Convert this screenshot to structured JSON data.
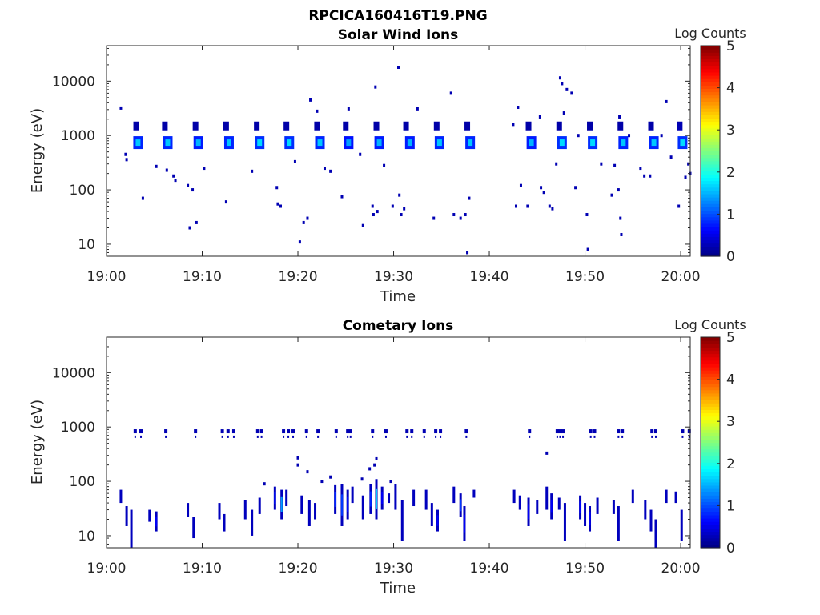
{
  "figure_title": "RPCICA160416T19.PNG",
  "chart_data": [
    {
      "type": "heatmap",
      "title": "Solar Wind Ions",
      "xlabel": "Time",
      "ylabel": "Energy (eV)",
      "x_tick_labels": [
        "19:00",
        "19:10",
        "19:20",
        "19:30",
        "19:40",
        "19:50",
        "20:00"
      ],
      "y_tick_labels": [
        "10",
        "100",
        "1000",
        "10000"
      ],
      "y_tick_values": [
        10,
        100,
        1000,
        10000
      ],
      "y_scale": "log",
      "xlim": [
        "19:00",
        "20:01"
      ],
      "ylim": [
        6,
        45000
      ],
      "colorbar": {
        "label": "Log Counts",
        "min": 0,
        "max": 5,
        "tick_labels": [
          "0",
          "1",
          "2",
          "3",
          "4",
          "5"
        ],
        "colormap": "jet"
      },
      "blobs": [
        {
          "t": 3.3,
          "e": 740,
          "v": 1.6
        },
        {
          "t": 3.1,
          "e": 1500,
          "v": 0.3
        },
        {
          "t": 6.4,
          "e": 740,
          "v": 1.6
        },
        {
          "t": 6.1,
          "e": 1500,
          "v": 0.3
        },
        {
          "t": 9.6,
          "e": 740,
          "v": 1.5
        },
        {
          "t": 9.3,
          "e": 1500,
          "v": 0.3
        },
        {
          "t": 12.8,
          "e": 740,
          "v": 1.6
        },
        {
          "t": 12.5,
          "e": 1500,
          "v": 0.3
        },
        {
          "t": 16.0,
          "e": 740,
          "v": 1.7
        },
        {
          "t": 15.7,
          "e": 1500,
          "v": 0.3
        },
        {
          "t": 19.1,
          "e": 740,
          "v": 1.7
        },
        {
          "t": 18.8,
          "e": 1500,
          "v": 0.4
        },
        {
          "t": 22.3,
          "e": 740,
          "v": 1.6
        },
        {
          "t": 22.0,
          "e": 1500,
          "v": 0.3
        },
        {
          "t": 25.3,
          "e": 740,
          "v": 1.4
        },
        {
          "t": 25.0,
          "e": 1500,
          "v": 0.3
        },
        {
          "t": 28.5,
          "e": 740,
          "v": 1.5
        },
        {
          "t": 28.2,
          "e": 1500,
          "v": 0.4
        },
        {
          "t": 31.7,
          "e": 740,
          "v": 1.5
        },
        {
          "t": 31.3,
          "e": 1500,
          "v": 0.4
        },
        {
          "t": 34.8,
          "e": 740,
          "v": 1.6
        },
        {
          "t": 34.5,
          "e": 1500,
          "v": 0.3
        },
        {
          "t": 38.0,
          "e": 740,
          "v": 1.6
        },
        {
          "t": 37.7,
          "e": 1500,
          "v": 0.3
        },
        {
          "t": 44.4,
          "e": 740,
          "v": 1.5
        },
        {
          "t": 44.1,
          "e": 1500,
          "v": 0.3
        },
        {
          "t": 47.6,
          "e": 740,
          "v": 1.7
        },
        {
          "t": 47.3,
          "e": 1500,
          "v": 0.4
        },
        {
          "t": 50.8,
          "e": 740,
          "v": 1.7
        },
        {
          "t": 50.5,
          "e": 1500,
          "v": 0.3
        },
        {
          "t": 54.0,
          "e": 740,
          "v": 1.6
        },
        {
          "t": 53.7,
          "e": 1500,
          "v": 0.3
        },
        {
          "t": 57.2,
          "e": 740,
          "v": 1.6
        },
        {
          "t": 56.9,
          "e": 1500,
          "v": 0.3
        },
        {
          "t": 60.2,
          "e": 740,
          "v": 1.7
        },
        {
          "t": 59.9,
          "e": 1500,
          "v": 0.5
        }
      ],
      "dots": [
        {
          "t": 1.5,
          "e": 3200
        },
        {
          "t": 2.0,
          "e": 450
        },
        {
          "t": 2.1,
          "e": 360
        },
        {
          "t": 3.8,
          "e": 70
        },
        {
          "t": 5.2,
          "e": 270
        },
        {
          "t": 6.3,
          "e": 230
        },
        {
          "t": 7.0,
          "e": 180
        },
        {
          "t": 7.2,
          "e": 150
        },
        {
          "t": 8.5,
          "e": 120
        },
        {
          "t": 8.7,
          "e": 20
        },
        {
          "t": 9.0,
          "e": 100
        },
        {
          "t": 9.4,
          "e": 25
        },
        {
          "t": 10.2,
          "e": 250
        },
        {
          "t": 12.5,
          "e": 60
        },
        {
          "t": 15.2,
          "e": 220
        },
        {
          "t": 17.8,
          "e": 110
        },
        {
          "t": 17.9,
          "e": 55
        },
        {
          "t": 18.2,
          "e": 50
        },
        {
          "t": 19.7,
          "e": 330
        },
        {
          "t": 20.2,
          "e": 11
        },
        {
          "t": 20.6,
          "e": 25
        },
        {
          "t": 21.0,
          "e": 30
        },
        {
          "t": 21.3,
          "e": 4500
        },
        {
          "t": 22.0,
          "e": 2800
        },
        {
          "t": 22.8,
          "e": 250
        },
        {
          "t": 23.4,
          "e": 220
        },
        {
          "t": 24.6,
          "e": 75
        },
        {
          "t": 25.3,
          "e": 3100
        },
        {
          "t": 26.5,
          "e": 450
        },
        {
          "t": 26.8,
          "e": 22
        },
        {
          "t": 27.8,
          "e": 50
        },
        {
          "t": 27.9,
          "e": 35
        },
        {
          "t": 28.1,
          "e": 7800
        },
        {
          "t": 28.3,
          "e": 40
        },
        {
          "t": 29.0,
          "e": 280
        },
        {
          "t": 29.9,
          "e": 50
        },
        {
          "t": 30.5,
          "e": 18000
        },
        {
          "t": 30.6,
          "e": 80
        },
        {
          "t": 30.8,
          "e": 35
        },
        {
          "t": 31.1,
          "e": 45
        },
        {
          "t": 32.5,
          "e": 3100
        },
        {
          "t": 34.2,
          "e": 30
        },
        {
          "t": 36.0,
          "e": 6000
        },
        {
          "t": 36.3,
          "e": 35
        },
        {
          "t": 37.0,
          "e": 30
        },
        {
          "t": 37.5,
          "e": 35
        },
        {
          "t": 37.7,
          "e": 7
        },
        {
          "t": 37.9,
          "e": 70
        },
        {
          "t": 42.5,
          "e": 1600
        },
        {
          "t": 42.8,
          "e": 50
        },
        {
          "t": 43.0,
          "e": 3300
        },
        {
          "t": 43.3,
          "e": 120
        },
        {
          "t": 44.0,
          "e": 50
        },
        {
          "t": 45.3,
          "e": 2200
        },
        {
          "t": 45.4,
          "e": 110
        },
        {
          "t": 45.7,
          "e": 90
        },
        {
          "t": 46.3,
          "e": 50
        },
        {
          "t": 46.6,
          "e": 45
        },
        {
          "t": 47.0,
          "e": 300
        },
        {
          "t": 47.4,
          "e": 11500
        },
        {
          "t": 47.6,
          "e": 9000
        },
        {
          "t": 47.8,
          "e": 2600
        },
        {
          "t": 48.1,
          "e": 7000
        },
        {
          "t": 48.6,
          "e": 6000
        },
        {
          "t": 49.0,
          "e": 110
        },
        {
          "t": 49.3,
          "e": 1000
        },
        {
          "t": 50.2,
          "e": 35
        },
        {
          "t": 50.3,
          "e": 8
        },
        {
          "t": 51.7,
          "e": 300
        },
        {
          "t": 52.8,
          "e": 80
        },
        {
          "t": 53.1,
          "e": 280
        },
        {
          "t": 53.5,
          "e": 100
        },
        {
          "t": 53.6,
          "e": 2200
        },
        {
          "t": 53.7,
          "e": 30
        },
        {
          "t": 53.8,
          "e": 15
        },
        {
          "t": 54.6,
          "e": 1000
        },
        {
          "t": 55.8,
          "e": 250
        },
        {
          "t": 56.2,
          "e": 180
        },
        {
          "t": 56.8,
          "e": 180
        },
        {
          "t": 58.0,
          "e": 1000
        },
        {
          "t": 58.5,
          "e": 4200
        },
        {
          "t": 59.0,
          "e": 400
        },
        {
          "t": 59.8,
          "e": 50
        },
        {
          "t": 60.5,
          "e": 170
        },
        {
          "t": 60.8,
          "e": 300
        },
        {
          "t": 61.0,
          "e": 200
        }
      ]
    },
    {
      "type": "heatmap",
      "title": "Cometary Ions",
      "xlabel": "Time",
      "ylabel": "Energy (eV)",
      "x_tick_labels": [
        "19:00",
        "19:10",
        "19:20",
        "19:30",
        "19:40",
        "19:50",
        "20:00"
      ],
      "y_tick_labels": [
        "10",
        "100",
        "1000",
        "10000"
      ],
      "y_tick_values": [
        10,
        100,
        1000,
        10000
      ],
      "y_scale": "log",
      "xlim": [
        "19:00",
        "20:01"
      ],
      "ylim": [
        6,
        45000
      ],
      "colorbar": {
        "label": "Log Counts",
        "min": 0,
        "max": 5,
        "tick_labels": [
          "0",
          "1",
          "2",
          "3",
          "4",
          "5"
        ],
        "colormap": "jet"
      },
      "band_dots": [
        {
          "t": 3.0
        },
        {
          "t": 3.6
        },
        {
          "t": 6.2
        },
        {
          "t": 9.3
        },
        {
          "t": 12.1
        },
        {
          "t": 12.7
        },
        {
          "t": 13.3
        },
        {
          "t": 15.8
        },
        {
          "t": 16.2
        },
        {
          "t": 18.5
        },
        {
          "t": 19.0
        },
        {
          "t": 19.5
        },
        {
          "t": 20.9
        },
        {
          "t": 22.1
        },
        {
          "t": 24.0
        },
        {
          "t": 25.2
        },
        {
          "t": 25.5
        },
        {
          "t": 27.8
        },
        {
          "t": 29.2
        },
        {
          "t": 31.4
        },
        {
          "t": 31.9
        },
        {
          "t": 33.2
        },
        {
          "t": 34.4
        },
        {
          "t": 34.9
        },
        {
          "t": 37.6
        },
        {
          "t": 44.2
        },
        {
          "t": 47.1
        },
        {
          "t": 47.4
        },
        {
          "t": 47.7
        },
        {
          "t": 50.6
        },
        {
          "t": 51.0
        },
        {
          "t": 53.5
        },
        {
          "t": 53.9
        },
        {
          "t": 57.0
        },
        {
          "t": 57.4
        },
        {
          "t": 60.2
        },
        {
          "t": 60.9
        }
      ],
      "streaks": [
        {
          "t": 1.5,
          "lo": 40,
          "hi": 70,
          "v": 0.3
        },
        {
          "t": 2.1,
          "lo": 15,
          "hi": 35,
          "v": 0.3
        },
        {
          "t": 2.6,
          "lo": 6,
          "hi": 30,
          "v": 0.3
        },
        {
          "t": 5.2,
          "lo": 12,
          "hi": 28,
          "v": 0.6
        },
        {
          "t": 4.5,
          "lo": 18,
          "hi": 30,
          "v": 0.3
        },
        {
          "t": 8.5,
          "lo": 22,
          "hi": 40,
          "v": 0.4
        },
        {
          "t": 9.1,
          "lo": 9,
          "hi": 22,
          "v": 0.3
        },
        {
          "t": 11.8,
          "lo": 20,
          "hi": 40,
          "v": 0.4
        },
        {
          "t": 12.3,
          "lo": 12,
          "hi": 25,
          "v": 0.3
        },
        {
          "t": 14.5,
          "lo": 20,
          "hi": 45,
          "v": 0.4
        },
        {
          "t": 15.2,
          "lo": 10,
          "hi": 30,
          "v": 0.4
        },
        {
          "t": 16.0,
          "lo": 25,
          "hi": 50,
          "v": 0.3
        },
        {
          "t": 17.6,
          "lo": 30,
          "hi": 80,
          "v": 0.7
        },
        {
          "t": 18.3,
          "lo": 20,
          "hi": 70,
          "v": 1.4
        },
        {
          "t": 18.8,
          "lo": 35,
          "hi": 70,
          "v": 0.5
        },
        {
          "t": 20.4,
          "lo": 25,
          "hi": 55,
          "v": 0.4
        },
        {
          "t": 21.2,
          "lo": 15,
          "hi": 45,
          "v": 0.5
        },
        {
          "t": 21.8,
          "lo": 20,
          "hi": 40,
          "v": 0.3
        },
        {
          "t": 23.9,
          "lo": 25,
          "hi": 85,
          "v": 0.8
        },
        {
          "t": 24.6,
          "lo": 15,
          "hi": 90,
          "v": 0.9
        },
        {
          "t": 25.2,
          "lo": 20,
          "hi": 70,
          "v": 0.7
        },
        {
          "t": 25.7,
          "lo": 40,
          "hi": 80,
          "v": 0.4
        },
        {
          "t": 26.8,
          "lo": 20,
          "hi": 55,
          "v": 0.4
        },
        {
          "t": 27.6,
          "lo": 25,
          "hi": 90,
          "v": 0.8
        },
        {
          "t": 28.2,
          "lo": 20,
          "hi": 110,
          "v": 1.6
        },
        {
          "t": 28.8,
          "lo": 30,
          "hi": 80,
          "v": 0.6
        },
        {
          "t": 29.5,
          "lo": 40,
          "hi": 60,
          "v": 0.3
        },
        {
          "t": 30.2,
          "lo": 30,
          "hi": 90,
          "v": 0.5
        },
        {
          "t": 30.9,
          "lo": 8,
          "hi": 45,
          "v": 0.5
        },
        {
          "t": 32.1,
          "lo": 35,
          "hi": 70,
          "v": 0.3
        },
        {
          "t": 33.4,
          "lo": 30,
          "hi": 70,
          "v": 0.4
        },
        {
          "t": 34.0,
          "lo": 15,
          "hi": 40,
          "v": 0.5
        },
        {
          "t": 34.6,
          "lo": 12,
          "hi": 30,
          "v": 0.6
        },
        {
          "t": 36.3,
          "lo": 40,
          "hi": 80,
          "v": 0.4
        },
        {
          "t": 37.0,
          "lo": 22,
          "hi": 60,
          "v": 0.9
        },
        {
          "t": 37.4,
          "lo": 8,
          "hi": 35,
          "v": 0.6
        },
        {
          "t": 38.4,
          "lo": 50,
          "hi": 70,
          "v": 0.3
        },
        {
          "t": 42.6,
          "lo": 40,
          "hi": 70,
          "v": 0.3
        },
        {
          "t": 43.2,
          "lo": 30,
          "hi": 55,
          "v": 0.4
        },
        {
          "t": 44.1,
          "lo": 15,
          "hi": 50,
          "v": 0.6
        },
        {
          "t": 45.0,
          "lo": 25,
          "hi": 45,
          "v": 0.4
        },
        {
          "t": 46.0,
          "lo": 30,
          "hi": 80,
          "v": 0.5
        },
        {
          "t": 46.5,
          "lo": 20,
          "hi": 60,
          "v": 0.6
        },
        {
          "t": 47.3,
          "lo": 30,
          "hi": 50,
          "v": 0.4
        },
        {
          "t": 47.9,
          "lo": 8,
          "hi": 40,
          "v": 0.4
        },
        {
          "t": 49.5,
          "lo": 20,
          "hi": 55,
          "v": 0.6
        },
        {
          "t": 50.0,
          "lo": 15,
          "hi": 40,
          "v": 0.5
        },
        {
          "t": 50.5,
          "lo": 12,
          "hi": 35,
          "v": 0.6
        },
        {
          "t": 51.3,
          "lo": 25,
          "hi": 50,
          "v": 0.4
        },
        {
          "t": 53.0,
          "lo": 25,
          "hi": 45,
          "v": 0.4
        },
        {
          "t": 53.5,
          "lo": 8,
          "hi": 35,
          "v": 0.5
        },
        {
          "t": 55.0,
          "lo": 40,
          "hi": 70,
          "v": 0.3
        },
        {
          "t": 56.3,
          "lo": 20,
          "hi": 45,
          "v": 0.5
        },
        {
          "t": 56.9,
          "lo": 12,
          "hi": 30,
          "v": 0.4
        },
        {
          "t": 57.4,
          "lo": 6,
          "hi": 20,
          "v": 0.3
        },
        {
          "t": 58.5,
          "lo": 40,
          "hi": 70,
          "v": 0.3
        },
        {
          "t": 59.5,
          "lo": 40,
          "hi": 65,
          "v": 0.4
        },
        {
          "t": 60.1,
          "lo": 8,
          "hi": 30,
          "v": 0.3
        }
      ],
      "dots": [
        {
          "t": 20.0,
          "e": 270
        },
        {
          "t": 20.0,
          "e": 200
        },
        {
          "t": 21.0,
          "e": 150
        },
        {
          "t": 28.2,
          "e": 260
        },
        {
          "t": 28.0,
          "e": 200
        },
        {
          "t": 27.5,
          "e": 170
        },
        {
          "t": 46.0,
          "e": 330
        },
        {
          "t": 16.5,
          "e": 90
        },
        {
          "t": 22.5,
          "e": 100
        },
        {
          "t": 23.4,
          "e": 120
        },
        {
          "t": 26.7,
          "e": 110
        },
        {
          "t": 29.7,
          "e": 100
        }
      ]
    }
  ]
}
